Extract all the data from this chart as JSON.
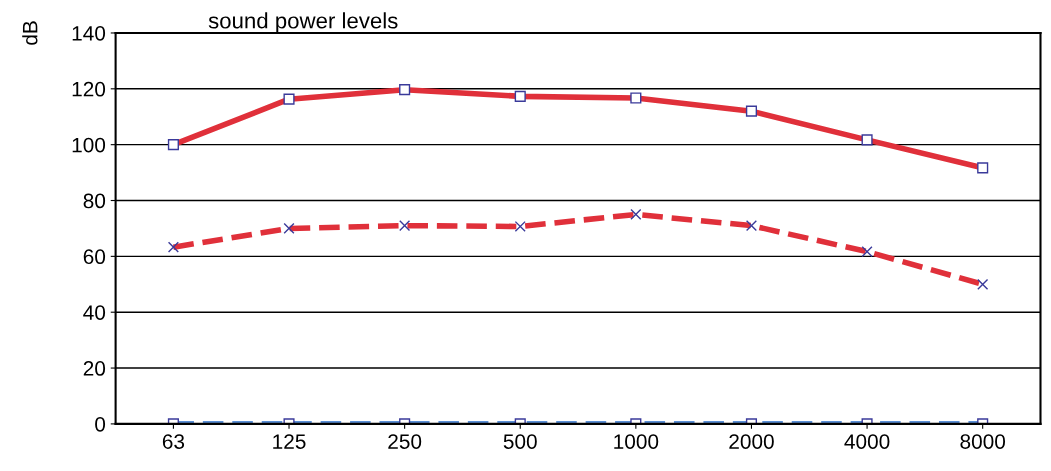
{
  "chart_data": {
    "type": "line",
    "title": "sound power levels",
    "ylabel": "dB",
    "categories": [
      "63",
      "125",
      "250",
      "500",
      "1000",
      "2000",
      "4000",
      "8000"
    ],
    "ylim": [
      0,
      140
    ],
    "yticks": [
      0,
      20,
      40,
      60,
      80,
      100,
      120,
      140
    ],
    "grid": "y",
    "series": [
      {
        "color": "#e0303a",
        "marker": "square",
        "line_style": "solid",
        "values": [
          100,
          116.3,
          119.7,
          117.3,
          116.7,
          112,
          101.7,
          91.7
        ]
      },
      {
        "color": "#e0303a",
        "marker": "cross",
        "line_style": "dashed",
        "values": [
          63.3,
          70,
          71,
          70.7,
          75,
          71,
          61.7,
          50
        ]
      },
      {
        "color": "#5b8fd6",
        "marker": "square",
        "line_style": "dashed",
        "values": [
          0,
          0,
          0,
          0,
          0,
          0,
          0,
          0
        ]
      }
    ]
  }
}
